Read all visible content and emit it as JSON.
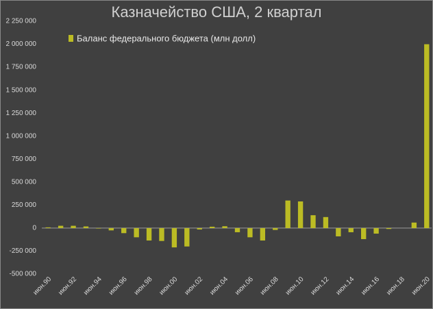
{
  "chart_data": {
    "type": "bar",
    "title": "Казначейство США, 2 квартал",
    "categories": [
      "июн.90",
      null,
      "июн.92",
      null,
      "июн.94",
      null,
      "июн.96",
      null,
      "июн.98",
      null,
      "июн.00",
      null,
      "июн.02",
      null,
      "июн.04",
      null,
      "июн.06",
      null,
      "июн.08",
      null,
      "июн.10",
      null,
      "июн.12",
      null,
      "июн.14",
      null,
      "июн.16",
      null,
      "июн.18",
      null,
      "июн.20"
    ],
    "series": [
      {
        "name": "Баланс федерального бюджета (млн долл)",
        "color": "#bcbc24",
        "values": [
          8000,
          25000,
          25000,
          18000,
          -5000,
          -25000,
          -55000,
          -100000,
          -135000,
          -140000,
          -210000,
          -200000,
          -15000,
          15000,
          20000,
          -45000,
          -100000,
          -135000,
          -20000,
          300000,
          290000,
          140000,
          120000,
          -90000,
          -45000,
          -120000,
          -60000,
          -10000,
          0,
          60000,
          2000000
        ]
      }
    ],
    "ylim": [
      -500000,
      2250000
    ],
    "yticks": [
      {
        "value": -500000,
        "label": "-500 000"
      },
      {
        "value": -250000,
        "label": "-250 000"
      },
      0,
      {
        "value": 250000,
        "label": "250 000"
      },
      {
        "value": 500000,
        "label": "500 000"
      },
      {
        "value": 750000,
        "label": "750 000"
      },
      {
        "value": 1000000,
        "label": "1 000 000"
      },
      {
        "value": 1250000,
        "label": "1 250 000"
      },
      {
        "value": 1500000,
        "label": "1 500 000"
      },
      {
        "value": 1750000,
        "label": "1 750 000"
      },
      {
        "value": 2000000,
        "label": "2 000 000"
      },
      {
        "value": 2250000,
        "label": "2 250 000"
      }
    ],
    "legend": "upper left"
  }
}
